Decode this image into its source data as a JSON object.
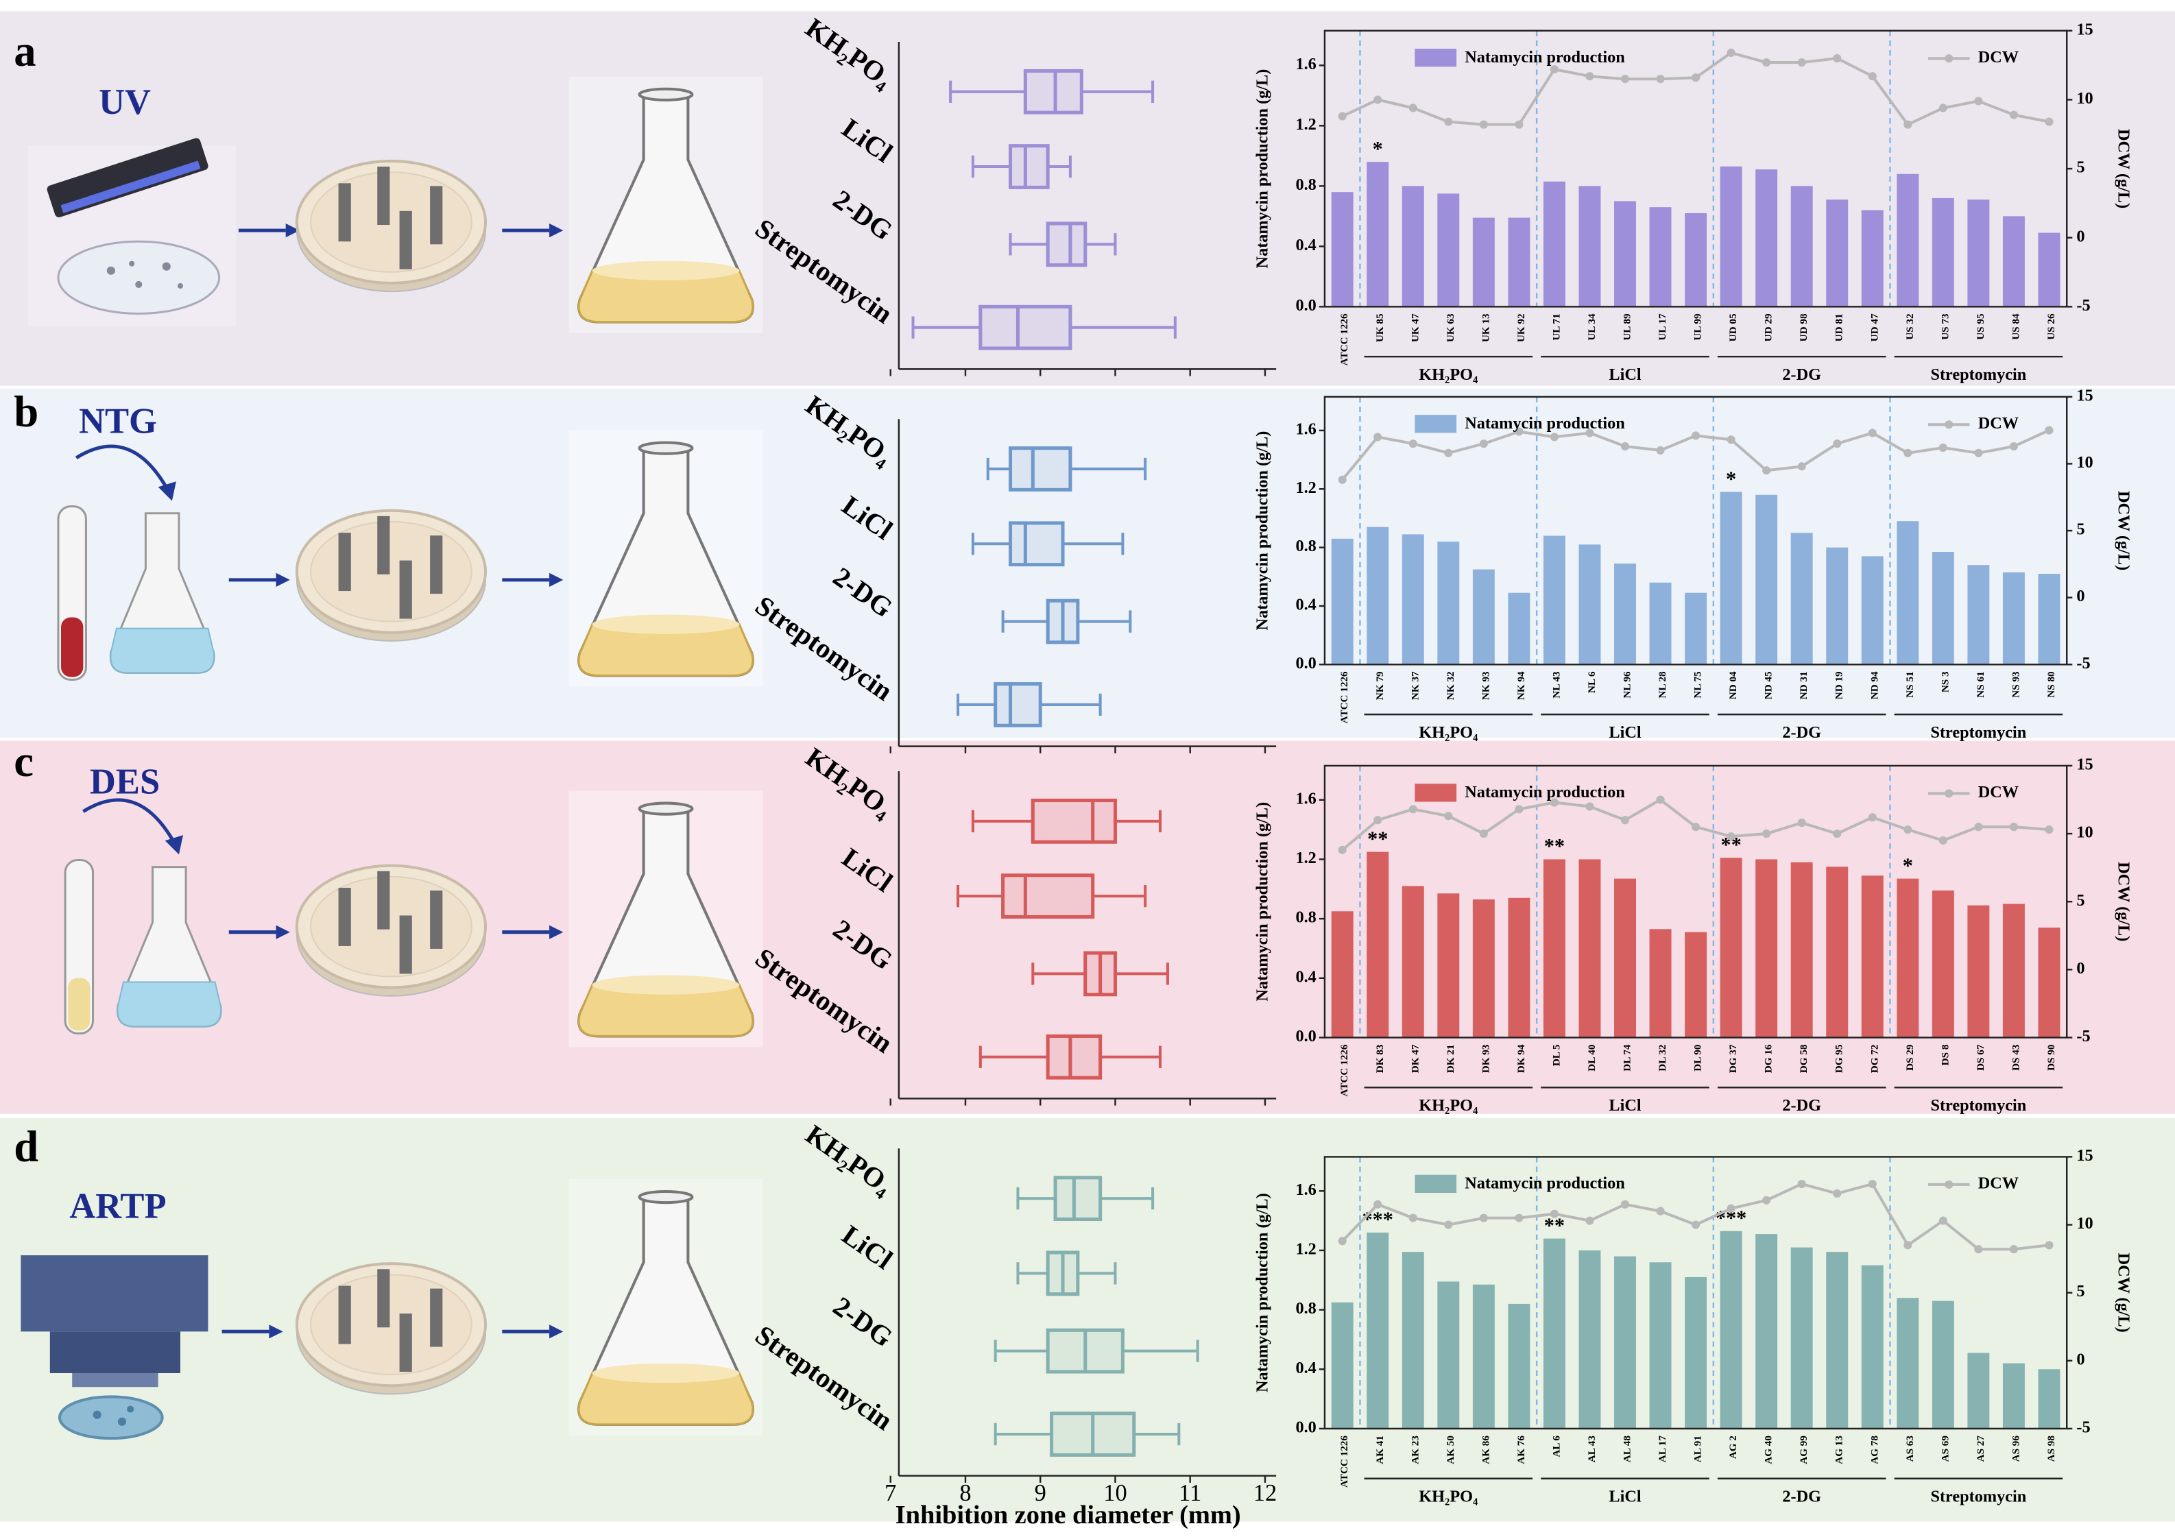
{
  "panels": [
    {
      "label": "a",
      "method": "UV"
    },
    {
      "label": "b",
      "method": "NTG"
    },
    {
      "label": "c",
      "method": "DES"
    },
    {
      "label": "d",
      "method": "ARTP"
    }
  ],
  "chart_data": [
    {
      "type": "box",
      "color": "#9b8fd5",
      "categories": [
        "KH₂PO₄",
        "LiCl",
        "2-DG",
        "Streptomycin"
      ],
      "min": [
        7.8,
        8.1,
        8.6,
        7.3
      ],
      "q1": [
        8.8,
        8.6,
        9.1,
        8.2
      ],
      "median": [
        9.2,
        8.8,
        9.4,
        8.7
      ],
      "q3": [
        9.55,
        9.1,
        9.6,
        9.4
      ],
      "max": [
        10.5,
        9.4,
        10.0,
        10.8
      ],
      "xlim": [
        7,
        12
      ],
      "xticks": [
        7,
        8,
        9,
        10,
        11,
        12
      ],
      "xtick_labels": false
    },
    {
      "type": "bar_line",
      "categories": [
        "ATCC 1226",
        "UK 85",
        "UK 47",
        "UK 63",
        "UK 13",
        "UK 92",
        "UL 71",
        "UL 34",
        "UL 89",
        "UL 17",
        "UL 99",
        "UD 05",
        "UD 29",
        "UD 98",
        "UD 81",
        "UD 47",
        "US 32",
        "US 73",
        "US 95",
        "US 84",
        "US 26"
      ],
      "groups": [
        "KH₂PO₄",
        "LiCl",
        "2-DG",
        "Streptomycin"
      ],
      "series": [
        {
          "name": "Natamycin production",
          "color": "#9d8fd9",
          "values": [
            0.76,
            0.96,
            0.8,
            0.75,
            0.59,
            0.59,
            0.83,
            0.8,
            0.7,
            0.66,
            0.62,
            0.93,
            0.91,
            0.8,
            0.71,
            0.64,
            0.88,
            0.72,
            0.71,
            0.6,
            0.49
          ]
        },
        {
          "name": "DCW",
          "color": "#b8b8b8",
          "axis": "y2",
          "values": [
            8.8,
            10.0,
            9.4,
            8.4,
            8.2,
            8.2,
            12.2,
            11.7,
            11.5,
            11.5,
            11.6,
            13.4,
            12.7,
            12.7,
            13.0,
            11.7,
            8.2,
            9.4,
            9.9,
            8.9,
            8.4
          ]
        }
      ],
      "significance": [
        null,
        "*",
        null,
        null,
        null,
        null,
        null,
        null,
        null,
        null,
        null,
        null,
        null,
        null,
        null,
        null,
        null,
        null,
        null,
        null,
        null
      ],
      "ylabel": "Natamycin production (g/L)",
      "y2label": "DCW (g/L)",
      "ylim": [
        0,
        1.83
      ],
      "yticks": [
        {
          "value": 0,
          "label": "0.0"
        },
        0.4,
        0.8,
        1.2,
        1.6
      ],
      "y2lim": [
        -5,
        15
      ],
      "y2ticks": [
        -5,
        0,
        5,
        10,
        15
      ]
    },
    {
      "type": "box",
      "color": "#6f98cb",
      "categories": [
        "KH₂PO₄",
        "LiCl",
        "2-DG",
        "Streptomycin"
      ],
      "min": [
        8.3,
        8.1,
        8.5,
        7.9
      ],
      "q1": [
        8.6,
        8.6,
        9.1,
        8.4
      ],
      "median": [
        8.9,
        8.8,
        9.3,
        8.6
      ],
      "q3": [
        9.4,
        9.3,
        9.5,
        9.0
      ],
      "max": [
        10.4,
        10.1,
        10.2,
        9.8
      ],
      "xlim": [
        7,
        12
      ],
      "xticks": [
        7,
        8,
        9,
        10,
        11,
        12
      ],
      "xtick_labels": false
    },
    {
      "type": "bar_line",
      "categories": [
        "ATCC 1226",
        "NK 79",
        "NK 37",
        "NK 32",
        "NK 93",
        "NK 94",
        "NL 43",
        "NL 6",
        "NL 96",
        "NL 28",
        "NL 75",
        "ND 04",
        "ND 45",
        "ND 31",
        "ND 19",
        "ND 94",
        "NS 51",
        "NS 3",
        "NS 61",
        "NS 93",
        "NS 80"
      ],
      "groups": [
        "KH₂PO₄",
        "LiCl",
        "2-DG",
        "Streptomycin"
      ],
      "series": [
        {
          "name": "Natamycin production",
          "color": "#8eb1dc",
          "values": [
            0.86,
            0.94,
            0.89,
            0.84,
            0.65,
            0.49,
            0.88,
            0.82,
            0.69,
            0.56,
            0.49,
            1.18,
            1.16,
            0.9,
            0.8,
            0.74,
            0.98,
            0.77,
            0.68,
            0.63,
            0.62
          ]
        },
        {
          "name": "DCW",
          "color": "#b8b8b8",
          "axis": "y2",
          "values": [
            8.8,
            12.0,
            11.5,
            10.8,
            11.5,
            12.4,
            12.0,
            12.3,
            11.3,
            11.0,
            12.1,
            11.8,
            9.5,
            9.8,
            11.5,
            12.3,
            10.8,
            11.2,
            10.8,
            11.3,
            12.5
          ]
        }
      ],
      "significance": [
        null,
        null,
        null,
        null,
        null,
        null,
        null,
        null,
        null,
        null,
        null,
        "*",
        null,
        null,
        null,
        null,
        null,
        null,
        null,
        null,
        null
      ],
      "ylabel": "Natamycin production (g/L)",
      "y2label": "DCW (g/L)",
      "ylim": [
        0,
        1.83
      ],
      "yticks": [
        {
          "value": 0,
          "label": "0.0"
        },
        0.4,
        0.8,
        1.2,
        1.6
      ],
      "y2lim": [
        -5,
        15
      ],
      "y2ticks": [
        -5,
        0,
        5,
        10,
        15
      ]
    },
    {
      "type": "box",
      "color": "#d65a5a",
      "categories": [
        "KH₂PO₄",
        "LiCl",
        "2-DG",
        "Streptomycin"
      ],
      "min": [
        8.1,
        7.9,
        8.9,
        8.2
      ],
      "q1": [
        8.9,
        8.5,
        9.6,
        9.1
      ],
      "median": [
        9.7,
        8.8,
        9.8,
        9.4
      ],
      "q3": [
        10.0,
        9.7,
        10.0,
        9.8
      ],
      "max": [
        10.6,
        10.4,
        10.7,
        10.6
      ],
      "xlim": [
        7,
        12
      ],
      "xticks": [
        7,
        8,
        9,
        10,
        11,
        12
      ],
      "xtick_labels": false
    },
    {
      "type": "bar_line",
      "categories": [
        "ATCC 1226",
        "DK 83",
        "DK 47",
        "DK 21",
        "DK 93",
        "DK 94",
        "DL 5",
        "DL 40",
        "DL 74",
        "DL 32",
        "DL 90",
        "DG 37",
        "DG 16",
        "DG 58",
        "DG 95",
        "DG 72",
        "DS 29",
        "DS 8",
        "DS 67",
        "DS 43",
        "DS 90"
      ],
      "groups": [
        "KH₂PO₄",
        "LiCl",
        "2-DG",
        "Streptomycin"
      ],
      "series": [
        {
          "name": "Natamycin production",
          "color": "#d65f5f",
          "values": [
            0.85,
            1.25,
            1.02,
            0.97,
            0.93,
            0.94,
            1.2,
            1.2,
            1.07,
            0.73,
            0.71,
            1.21,
            1.2,
            1.18,
            1.15,
            1.09,
            1.07,
            0.99,
            0.89,
            0.9,
            0.74
          ]
        },
        {
          "name": "DCW",
          "color": "#b8b8b8",
          "axis": "y2",
          "values": [
            8.8,
            11.0,
            11.8,
            11.3,
            10.0,
            11.8,
            12.3,
            12.0,
            11.0,
            12.5,
            10.5,
            9.8,
            10.0,
            10.8,
            10.0,
            11.2,
            10.3,
            9.5,
            10.5,
            10.5,
            10.3
          ]
        }
      ],
      "significance": [
        null,
        "**",
        null,
        null,
        null,
        null,
        "**",
        null,
        null,
        null,
        null,
        "**",
        null,
        null,
        null,
        null,
        "*",
        null,
        null,
        null,
        null
      ],
      "ylabel": "Natamycin production (g/L)",
      "y2label": "DCW (g/L)",
      "ylim": [
        0,
        1.83
      ],
      "yticks": [
        {
          "value": 0,
          "label": "0.0"
        },
        0.4,
        0.8,
        1.2,
        1.6
      ],
      "y2lim": [
        -5,
        15
      ],
      "y2ticks": [
        -5,
        0,
        5,
        10,
        15
      ]
    },
    {
      "type": "box",
      "color": "#85b0b0",
      "categories": [
        "KH₂PO₄",
        "LiCl",
        "2-DG",
        "Streptomycin"
      ],
      "min": [
        8.7,
        8.7,
        8.4,
        8.4
      ],
      "q1": [
        9.2,
        9.1,
        9.1,
        9.15
      ],
      "median": [
        9.45,
        9.3,
        9.6,
        9.7
      ],
      "q3": [
        9.8,
        9.5,
        10.1,
        10.25
      ],
      "max": [
        10.5,
        10.0,
        11.1,
        10.85
      ],
      "xlim": [
        7,
        12
      ],
      "xticks": [
        7,
        8,
        9,
        10,
        11,
        12
      ],
      "xlabel": "Inhibition zone diameter  (mm)"
    },
    {
      "type": "bar_line",
      "categories": [
        "ATCC 1226",
        "AK 41",
        "AK 23",
        "AK 50",
        "AK 86",
        "AK 76",
        "AL 6",
        "AL 43",
        "AL 48",
        "AL 17",
        "AL 91",
        "AG 2",
        "AG 40",
        "AG 99",
        "AG 13",
        "AG 78",
        "AS 63",
        "AS 69",
        "AS 27",
        "AS 96",
        "AS 98"
      ],
      "groups": [
        "KH₂PO₄",
        "LiCl",
        "2-DG",
        "Streptomycin"
      ],
      "series": [
        {
          "name": "Natamycin production",
          "color": "#86b3b1",
          "values": [
            0.85,
            1.32,
            1.19,
            0.99,
            0.97,
            0.84,
            1.28,
            1.2,
            1.16,
            1.12,
            1.02,
            1.33,
            1.31,
            1.22,
            1.19,
            1.1,
            0.88,
            0.86,
            0.51,
            0.44,
            0.4
          ]
        },
        {
          "name": "DCW",
          "color": "#b8b8b8",
          "axis": "y2",
          "values": [
            8.8,
            11.5,
            10.5,
            10.0,
            10.5,
            10.5,
            10.8,
            10.3,
            11.5,
            11.0,
            10.0,
            11.2,
            11.8,
            13.0,
            12.3,
            13.0,
            8.5,
            10.3,
            8.2,
            8.2,
            8.5
          ]
        }
      ],
      "significance": [
        null,
        "***",
        null,
        null,
        null,
        null,
        "**",
        null,
        null,
        null,
        null,
        "***",
        null,
        null,
        null,
        null,
        null,
        null,
        null,
        null,
        null
      ],
      "ylabel": "Natamycin production (g/L)",
      "y2label": "DCW (g/L)",
      "ylim": [
        0,
        1.83
      ],
      "yticks": [
        {
          "value": 0,
          "label": "0.0"
        },
        0.4,
        0.8,
        1.2,
        1.6
      ],
      "y2lim": [
        -5,
        15
      ],
      "y2ticks": [
        -5,
        0,
        5,
        10,
        15
      ]
    }
  ]
}
